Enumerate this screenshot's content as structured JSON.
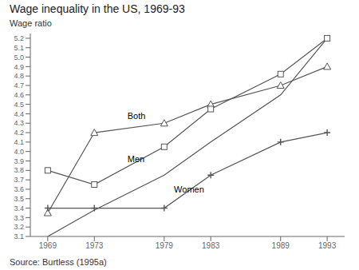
{
  "chart_data": {
    "type": "line",
    "title": "Wage inequality in the US, 1969-93",
    "ylabel": "Wage ratio",
    "source": "Source: Burtless (1995a)",
    "x": [
      1969,
      1973,
      1979,
      1983,
      1989,
      1993
    ],
    "xlim": [
      1967.5,
      1994.5
    ],
    "xticks": [
      1969,
      1973,
      1979,
      1983,
      1989,
      1993
    ],
    "ylim": [
      3.1,
      5.25
    ],
    "yticks": [
      3.1,
      3.2,
      3.3,
      3.4,
      3.5,
      3.6,
      3.7,
      3.8,
      3.9,
      {
        "value": 4,
        "label": "4.0"
      },
      4.1,
      4.2,
      4.3,
      4.4,
      4.5,
      4.6,
      4.7,
      4.8,
      4.9,
      {
        "value": 5,
        "label": "5.0"
      },
      5.1,
      5.2
    ],
    "series": [
      {
        "color": "#555555",
        "marker": "triangle",
        "line_style": "solid",
        "values": [
          3.35,
          4.2,
          4.3,
          4.5,
          4.7,
          4.9
        ]
      },
      {
        "color": "#555555",
        "marker": "square",
        "line_style": "solid",
        "values": [
          3.8,
          3.65,
          4.05,
          4.45,
          4.82,
          5.2
        ]
      },
      {
        "color": "#555555",
        "marker": "plus",
        "line_style": "solid",
        "values": [
          3.4,
          3.4,
          3.4,
          3.75,
          4.1,
          4.2
        ]
      },
      {
        "color": "#555555",
        "marker": "none",
        "line_style": "solid",
        "values": [
          3.1,
          3.38,
          3.75,
          4.1,
          4.6,
          5.2
        ]
      }
    ],
    "annotations": [
      {
        "text": "Both",
        "x": 1975.5,
        "y": 4.38
      },
      {
        "text": "Men",
        "x": 1975.5,
        "y": 3.92
      },
      {
        "text": "Women",
        "x": 1979.5,
        "y": 3.6
      }
    ]
  }
}
